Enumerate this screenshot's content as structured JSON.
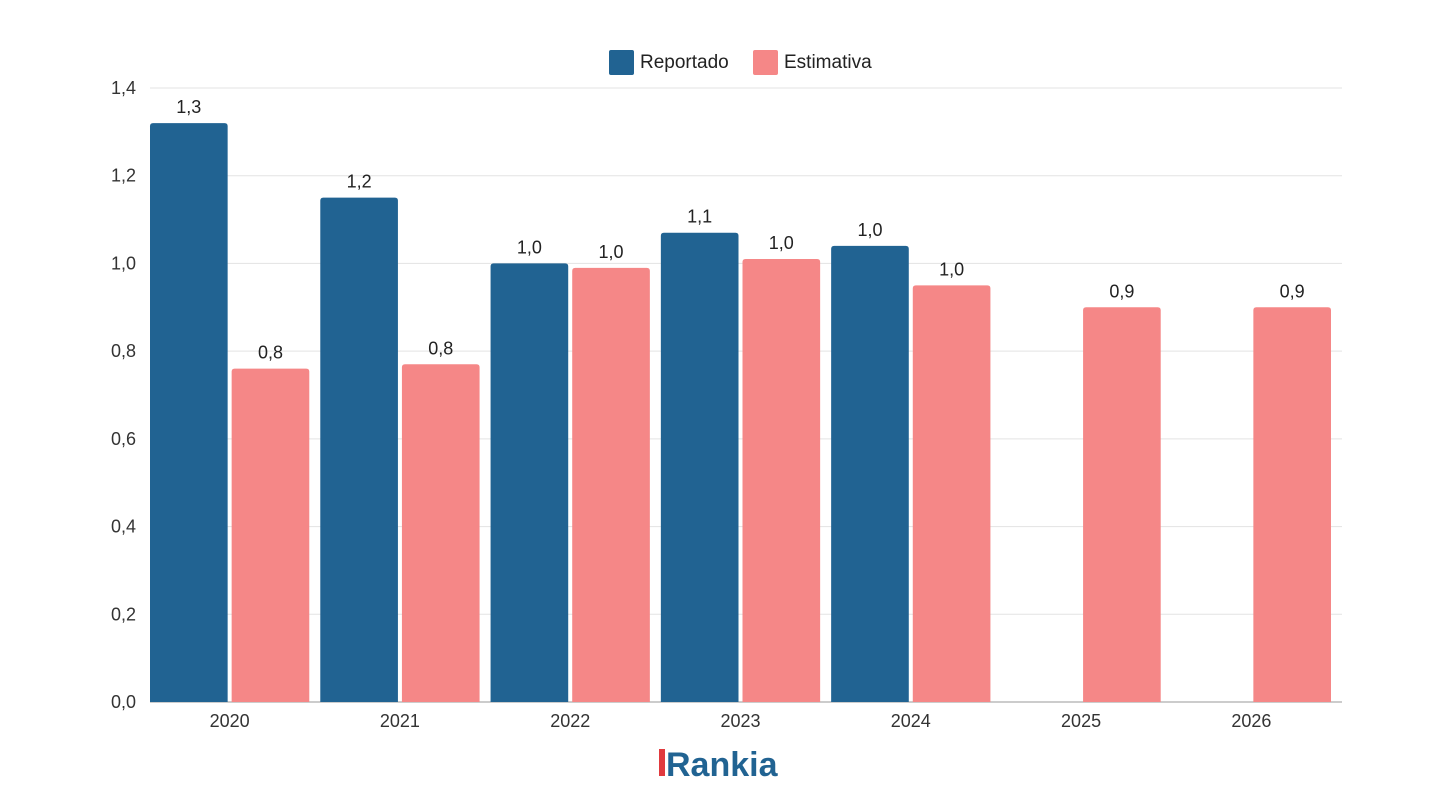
{
  "chart_data": {
    "type": "bar",
    "title": "",
    "xlabel": "",
    "ylabel": "",
    "categories": [
      "2020",
      "2021",
      "2022",
      "2023",
      "2024",
      "2025",
      "2026"
    ],
    "series": [
      {
        "name": "Reportado",
        "color": "#216392",
        "values": [
          1.32,
          1.15,
          1.0,
          1.07,
          1.04,
          null,
          null
        ],
        "labels": [
          "1,3",
          "1,2",
          "1,0",
          "1,1",
          "1,0",
          null,
          null
        ]
      },
      {
        "name": "Estimativa",
        "color": "#f58787",
        "values": [
          0.76,
          0.77,
          0.99,
          1.01,
          0.95,
          0.9,
          0.9
        ],
        "labels": [
          "0,8",
          "0,8",
          "1,0",
          "1,0",
          "1,0",
          "0,9",
          "0,9"
        ]
      }
    ],
    "ylim": [
      0,
      1.4
    ],
    "yticks": [
      0,
      0.2,
      0.4,
      0.6,
      0.8,
      1.0,
      1.2,
      1.4
    ],
    "ytick_labels": [
      "0,0",
      "0,2",
      "0,4",
      "0,6",
      "0,8",
      "1,0",
      "1,2",
      "1,4"
    ],
    "grid": true,
    "legend_position": "top-center"
  },
  "logo": {
    "text": "Rankia",
    "color": "#216392",
    "accent": "#e13a3e"
  }
}
